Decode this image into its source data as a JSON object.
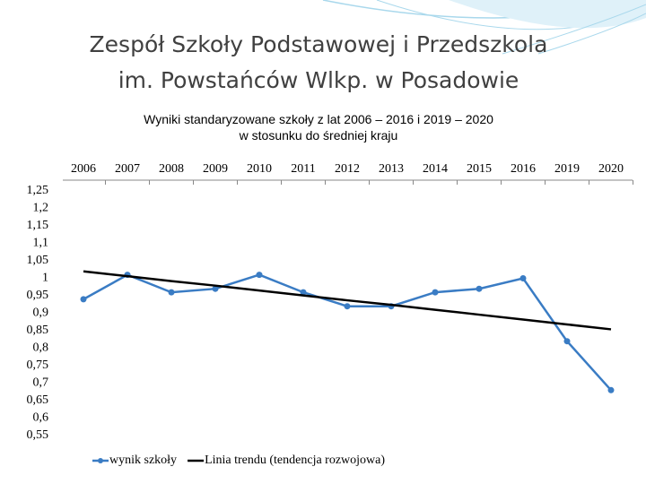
{
  "title": [
    "Zespół Szkoły Podstawowej i Przedszkola",
    "im. Powstańców Wlkp. w Posadowie"
  ],
  "chart_data": {
    "type": "line",
    "title": [
      "Wyniki  standaryzowane szkoły z lat 2006 – 2016 i 2019 – 2020",
      "w stosunku do średniej kraju"
    ],
    "categories": [
      "2006",
      "2007",
      "2008",
      "2009",
      "2010",
      "2011",
      "2012",
      "2013",
      "2014",
      "2015",
      "2016",
      "2019",
      "2020"
    ],
    "series": [
      {
        "name": "wynik szkoły",
        "color": "#3a7cc4",
        "marker": true,
        "values": [
          0.94,
          1.01,
          0.96,
          0.97,
          1.01,
          0.96,
          0.92,
          0.92,
          0.96,
          0.97,
          1.0,
          0.82,
          0.68
        ]
      },
      {
        "name": "Linia trendu (tendencja rozwojowa)",
        "color": "#000000",
        "marker": false,
        "values": [
          1.02,
          1.006,
          0.992,
          0.979,
          0.965,
          0.951,
          0.937,
          0.924,
          0.91,
          0.896,
          0.882,
          0.868,
          0.854
        ]
      }
    ],
    "ylim": [
      0.55,
      1.25
    ],
    "yticks": [
      {
        "value": 1.25,
        "label": "1,25"
      },
      {
        "value": 1.2,
        "label": "1,2"
      },
      {
        "value": 1.15,
        "label": "1,15"
      },
      {
        "value": 1.1,
        "label": "1,1"
      },
      {
        "value": 1.05,
        "label": "1,05"
      },
      1,
      {
        "value": 0.95,
        "label": "0,95"
      },
      {
        "value": 0.9,
        "label": "0,9"
      },
      {
        "value": 0.85,
        "label": "0,85"
      },
      {
        "value": 0.8,
        "label": "0,8"
      },
      {
        "value": 0.75,
        "label": "0,75"
      },
      {
        "value": 0.7,
        "label": "0,7"
      },
      {
        "value": 0.65,
        "label": "0,65"
      },
      {
        "value": 0.6,
        "label": "0,6"
      },
      {
        "value": 0.55,
        "label": "0,55"
      }
    ],
    "grid": false,
    "legend": "bottom"
  }
}
